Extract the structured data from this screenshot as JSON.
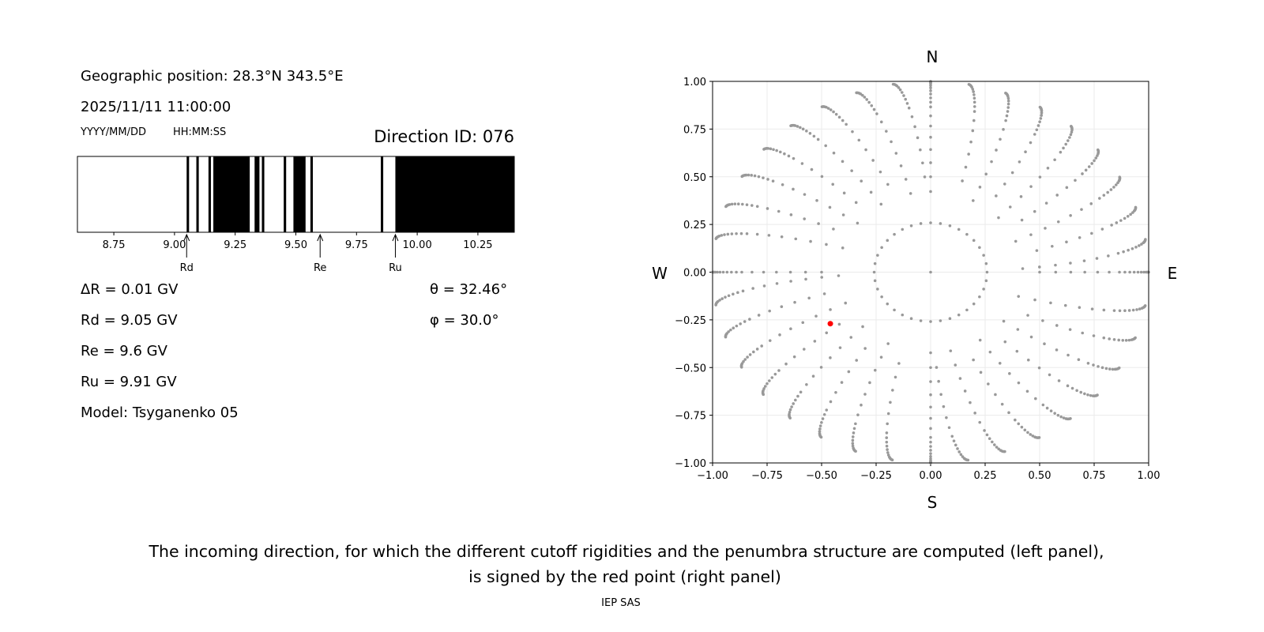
{
  "left_panel": {
    "geo_position": "Geographic position: 28.3°N 343.5°E",
    "datetime": "2025/11/11 11:00:00",
    "date_format": "YYYY/MM/DD",
    "time_format": "HH:MM:SS",
    "direction_id": "Direction ID: 076",
    "delta_r": "ΔR = 0.01 GV",
    "rd": "Rd = 9.05 GV",
    "re": "Re = 9.6 GV",
    "ru": "Ru = 9.91 GV",
    "model": "Model: Tsyganenko 05",
    "theta": "θ = 32.46°",
    "phi": "φ = 30.0°"
  },
  "chart_data": [
    {
      "type": "bar",
      "subtype": "penumbra-strip",
      "xlim": [
        8.6,
        10.4
      ],
      "xticks": [
        "8.75",
        "9.00",
        "9.25",
        "9.50",
        "9.75",
        "10.00",
        "10.25"
      ],
      "forbidden_bands": [
        [
          9.05,
          9.06
        ],
        [
          9.09,
          9.1
        ],
        [
          9.14,
          9.15
        ],
        [
          9.16,
          9.31
        ],
        [
          9.33,
          9.35
        ],
        [
          9.36,
          9.37
        ],
        [
          9.45,
          9.46
        ],
        [
          9.49,
          9.54
        ],
        [
          9.56,
          9.57
        ],
        [
          9.85,
          9.86
        ],
        [
          9.91,
          10.4
        ]
      ],
      "band_color": "#000000",
      "markers": [
        {
          "label": "Rd",
          "value": 9.05
        },
        {
          "label": "Re",
          "value": 9.6
        },
        {
          "label": "Ru",
          "value": 9.91
        }
      ]
    },
    {
      "type": "scatter",
      "xlim": [
        -1,
        1
      ],
      "ylim": [
        -1,
        1
      ],
      "grid": true,
      "xticks": [
        "−1.00",
        "−0.75",
        "−0.50",
        "−0.25",
        "0.00",
        "0.25",
        "0.50",
        "0.75",
        "1.00"
      ],
      "yticks": [
        "−1.00",
        "−0.75",
        "−0.50",
        "−0.25",
        "0.00",
        "0.25",
        "0.50",
        "0.75",
        "1.00"
      ],
      "compass": {
        "n": "N",
        "s": "S",
        "w": "W",
        "e": "E"
      },
      "directions_grid": {
        "azimuth_step_deg": 10,
        "inner_zenith_deg": 15,
        "zenith_max_deg": 90,
        "color": "#999999"
      },
      "selected_point": {
        "x": -0.46,
        "y": -0.27,
        "color": "#ff0000"
      }
    }
  ],
  "caption": {
    "line1": "The incoming direction, for which the different cutoff rigidities and the penumbra structure are computed (left panel),",
    "line2": "is signed by the red point (right panel)",
    "credit": "IEP SAS"
  }
}
